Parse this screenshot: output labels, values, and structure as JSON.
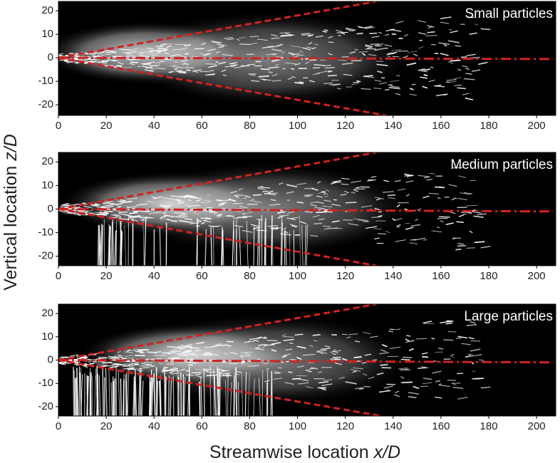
{
  "xlabel": [
    "Streamwise location ",
    "x/D"
  ],
  "ylabel": [
    "Vertical location ",
    "z/D"
  ],
  "chart_data": [
    {
      "type": "image",
      "title": "Small particles",
      "xlim": [
        0,
        208
      ],
      "ylim": [
        -24.5,
        24
      ],
      "xticks": [
        0,
        20,
        40,
        60,
        80,
        100,
        120,
        140,
        160,
        180,
        200
      ],
      "yticks": [
        20,
        10,
        0,
        -10,
        -20
      ],
      "lines": [
        {
          "x": [
            0,
            133
          ],
          "y": [
            0,
            24
          ],
          "style": "dashed",
          "color": "#d42020"
        },
        {
          "x": [
            0,
            137
          ],
          "y": [
            0,
            -24.5
          ],
          "style": "dashed",
          "color": "#d42020"
        },
        {
          "x": [
            0,
            207
          ],
          "y": [
            0,
            -0.5
          ],
          "style": "dashdot",
          "color": "#d42020"
        }
      ]
    },
    {
      "type": "image",
      "title": "Medium particles",
      "xlim": [
        0,
        208
      ],
      "ylim": [
        -24,
        24
      ],
      "xticks": [
        0,
        20,
        40,
        60,
        80,
        100,
        120,
        140,
        160,
        180,
        200
      ],
      "yticks": [
        20,
        10,
        0,
        -10,
        -20
      ],
      "lines": [
        {
          "x": [
            0,
            133
          ],
          "y": [
            0,
            24
          ],
          "style": "dashed",
          "color": "#d42020"
        },
        {
          "x": [
            0,
            133
          ],
          "y": [
            0,
            -24
          ],
          "style": "dashed",
          "color": "#d42020"
        },
        {
          "x": [
            0,
            207
          ],
          "y": [
            0,
            -1
          ],
          "style": "dashdot",
          "color": "#d42020"
        }
      ]
    },
    {
      "type": "image",
      "title": "Large particles",
      "xlim": [
        0,
        208
      ],
      "ylim": [
        -24,
        24
      ],
      "xticks": [
        0,
        20,
        40,
        60,
        80,
        100,
        120,
        140,
        160,
        180,
        200
      ],
      "yticks": [
        20,
        10,
        0,
        -10,
        -20
      ],
      "lines": [
        {
          "x": [
            0,
            133
          ],
          "y": [
            0,
            24
          ],
          "style": "dashed",
          "color": "#d42020"
        },
        {
          "x": [
            0,
            135
          ],
          "y": [
            0,
            -24
          ],
          "style": "dashed",
          "color": "#d42020"
        },
        {
          "x": [
            0,
            207
          ],
          "y": [
            0,
            -1
          ],
          "style": "dashdot",
          "color": "#d42020"
        }
      ]
    }
  ]
}
